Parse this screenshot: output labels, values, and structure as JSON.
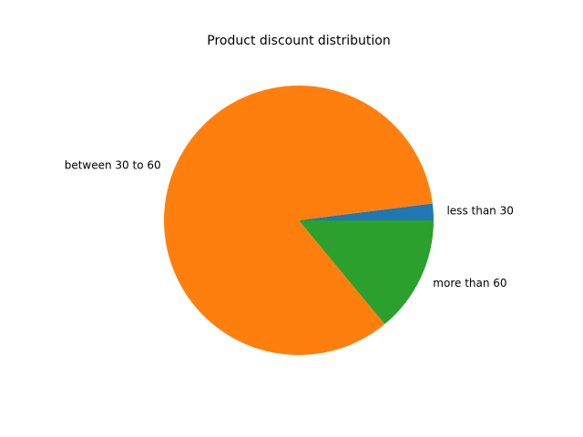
{
  "chart_data": {
    "type": "pie",
    "title": "Product discount distribution",
    "categories": [
      "less than 30",
      "between 30 to 60",
      "more than 60"
    ],
    "values": [
      2,
      84,
      14
    ],
    "colors": [
      "#1f77b4",
      "#ff7f0e",
      "#2ca02c"
    ],
    "start_angle_deg": 0,
    "direction": "counterclockwise",
    "legend": "none"
  }
}
